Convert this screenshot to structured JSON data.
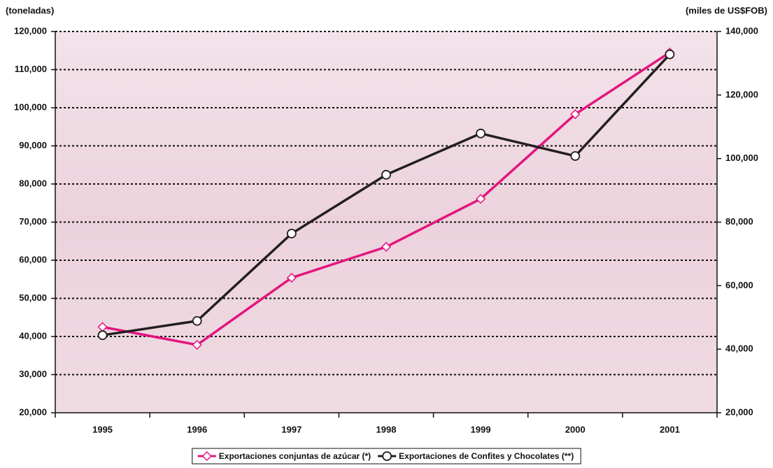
{
  "chart_data": {
    "type": "line",
    "y_label": "(toneladas)",
    "y2_label": "(miles de US$FOB)",
    "categories": [
      "1995",
      "1996",
      "1997",
      "1998",
      "1999",
      "2000",
      "2001"
    ],
    "series": [
      {
        "name": "Exportaciones conjuntas de azúcar (*)",
        "color": "#e3157f",
        "marker": "diamond",
        "values": [
          42500,
          37800,
          55400,
          63500,
          76100,
          98300,
          114500
        ]
      },
      {
        "name": "Exportaciones de Confites y Chocolates (**)",
        "color": "#231f20",
        "marker": "circle",
        "axis": "y2",
        "values": [
          44400,
          48900,
          76400,
          94900,
          107900,
          100800,
          132800
        ]
      }
    ],
    "ylim": [
      20000,
      120000
    ],
    "yticks": [
      {
        "value": 20000,
        "label": "20,000"
      },
      {
        "value": 30000,
        "label": "30,000"
      },
      {
        "value": 40000,
        "label": "40,000"
      },
      {
        "value": 50000,
        "label": "50,000"
      },
      {
        "value": 60000,
        "label": "60,000"
      },
      {
        "value": 70000,
        "label": "70,000"
      },
      {
        "value": 80000,
        "label": "80,000"
      },
      {
        "value": 90000,
        "label": "90,000"
      },
      {
        "value": 100000,
        "label": "100,000"
      },
      {
        "value": 110000,
        "label": "110,000"
      },
      {
        "value": 120000,
        "label": "120,000"
      }
    ],
    "y2lim": [
      20000,
      140000
    ],
    "y2ticks": [
      {
        "value": 20000,
        "label": "20,000"
      },
      {
        "value": 40000,
        "label": "40,000"
      },
      {
        "value": 60000,
        "label": "60,000"
      },
      {
        "value": 80000,
        "label": "80,000"
      },
      {
        "value": 100000,
        "label": "100,000"
      },
      {
        "value": 120000,
        "label": "120,000"
      },
      {
        "value": 140000,
        "label": "140,000"
      }
    ],
    "grid": true,
    "legend": "bottom"
  }
}
